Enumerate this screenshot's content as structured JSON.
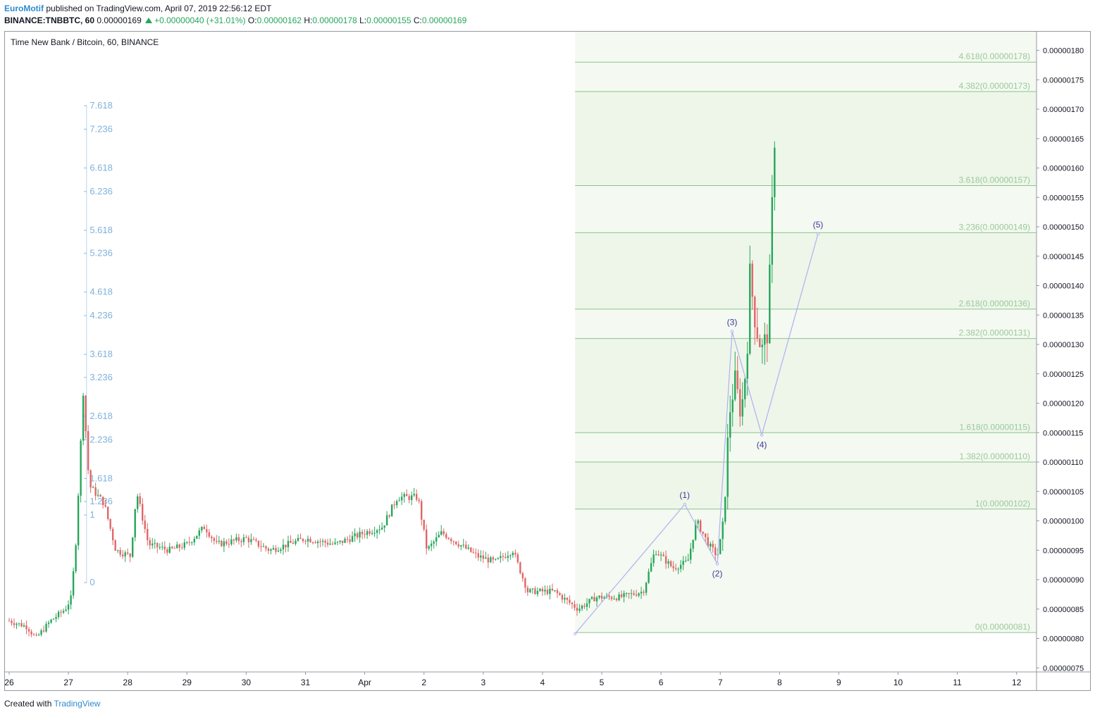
{
  "header": {
    "author": "EuroMotif",
    "published_text": "published on TradingView.com, April 07, 2019 22:56:12 EDT",
    "symbol_line": "BINANCE:TNBBTC, 60",
    "last_price": "0.00000169",
    "change": "+0.00000040 (+31.01%)",
    "open_label": "O:",
    "open": "0.00000162",
    "high_label": "H:",
    "high": "0.00000178",
    "low_label": "L:",
    "low": "0.00000155",
    "close_label": "C:",
    "close": "0.00000169"
  },
  "chart_title": "Time New Bank / Bitcoin, 60, BINANCE",
  "footer": {
    "created_with": "Created with",
    "brand": "TradingView"
  },
  "colors": {
    "up": "#26a65b",
    "down": "#e06666",
    "fib_line": "#8bc48b",
    "fib_label": "#9bc99b",
    "fib_fill": "#f4f9f1",
    "wave": "#b0b0f0",
    "wave_label": "#3a3a9a",
    "left_fib": "#7fb1dd",
    "axis_text": "#131722"
  },
  "chart_data": {
    "type": "candlestick",
    "y_axis": {
      "min": 7.3e-07,
      "max": 1.83e-06,
      "position": "right",
      "ticks": [
        "0.00000075",
        "0.00000080",
        "0.00000085",
        "0.00000090",
        "0.00000095",
        "0.00000100",
        "0.00000105",
        "0.00000110",
        "0.00000115",
        "0.00000120",
        "0.00000125",
        "0.00000130",
        "0.00000135",
        "0.00000140",
        "0.00000145",
        "0.00000150",
        "0.00000155",
        "0.00000160",
        "0.00000165",
        "0.00000170",
        "0.00000175",
        "0.00000180"
      ]
    },
    "x_axis": {
      "min": 0,
      "max": 18.4,
      "ticks": [
        {
          "t": 0,
          "label": "26"
        },
        {
          "t": 1,
          "label": "27"
        },
        {
          "t": 2,
          "label": "28"
        },
        {
          "t": 3,
          "label": "29"
        },
        {
          "t": 4,
          "label": "30"
        },
        {
          "t": 5,
          "label": "31"
        },
        {
          "t": 6,
          "label": "Apr"
        },
        {
          "t": 7,
          "label": "2"
        },
        {
          "t": 8,
          "label": "3"
        },
        {
          "t": 9,
          "label": "4"
        },
        {
          "t": 10,
          "label": "5"
        },
        {
          "t": 11,
          "label": "6"
        },
        {
          "t": 12,
          "label": "7"
        },
        {
          "t": 13,
          "label": "8"
        },
        {
          "t": 14,
          "label": "9"
        },
        {
          "t": 15,
          "label": "10"
        },
        {
          "t": 16,
          "label": "11"
        },
        {
          "t": 17,
          "label": "12"
        }
      ]
    },
    "fib_extension": {
      "t_start": 9.55,
      "t_end": 18.4,
      "levels": [
        {
          "ratio": "0",
          "label": "0(0.00000081)",
          "price": 8.1e-07
        },
        {
          "ratio": "1",
          "label": "1(0.00000102)",
          "price": 1.02e-06
        },
        {
          "ratio": "1.382",
          "label": "1.382(0.00000110)",
          "price": 1.1e-06
        },
        {
          "ratio": "1.618",
          "label": "1.618(0.00000115)",
          "price": 1.15e-06
        },
        {
          "ratio": "2.382",
          "label": "2.382(0.00000131)",
          "price": 1.31e-06
        },
        {
          "ratio": "2.618",
          "label": "2.618(0.00000136)",
          "price": 1.36e-06
        },
        {
          "ratio": "3.236",
          "label": "3.236(0.00000149)",
          "price": 1.49e-06
        },
        {
          "ratio": "3.618",
          "label": "3.618(0.00000157)",
          "price": 1.57e-06
        },
        {
          "ratio": "4.382",
          "label": "4.382(0.00000173)",
          "price": 1.73e-06
        },
        {
          "ratio": "4.618",
          "label": "4.618(0.00000178)",
          "price": 1.78e-06
        }
      ]
    },
    "left_fib": {
      "t": 1.3,
      "labels": [
        {
          "label": "0",
          "price": 8.95e-07
        },
        {
          "label": "1",
          "price": 1.01e-06
        },
        {
          "label": "1.236",
          "price": 1.033e-06
        },
        {
          "label": "1.618",
          "price": 1.072e-06
        },
        {
          "label": "2.236",
          "price": 1.138e-06
        },
        {
          "label": "2.618",
          "price": 1.178e-06
        },
        {
          "label": "3.236",
          "price": 1.244e-06
        },
        {
          "label": "3.618",
          "price": 1.283e-06
        },
        {
          "label": "4.236",
          "price": 1.349e-06
        },
        {
          "label": "4.618",
          "price": 1.389e-06
        },
        {
          "label": "5.236",
          "price": 1.455e-06
        },
        {
          "label": "5.618",
          "price": 1.494e-06
        },
        {
          "label": "6.236",
          "price": 1.56e-06
        },
        {
          "label": "6.618",
          "price": 1.6e-06
        },
        {
          "label": "7.236",
          "price": 1.666e-06
        },
        {
          "label": "7.618",
          "price": 1.706e-06
        }
      ]
    },
    "elliott_wave": [
      {
        "label": "",
        "t": 9.55,
        "price": 8.08e-07,
        "pos": "none"
      },
      {
        "label": "(1)",
        "t": 11.4,
        "price": 1.028e-06,
        "pos": "above"
      },
      {
        "label": "(2)",
        "t": 11.95,
        "price": 9.27e-07,
        "pos": "below"
      },
      {
        "label": "(3)",
        "t": 12.2,
        "price": 1.322e-06,
        "pos": "above"
      },
      {
        "label": "(4)",
        "t": 12.7,
        "price": 1.146e-06,
        "pos": "below"
      },
      {
        "label": "(5)",
        "t": 13.65,
        "price": 1.488e-06,
        "pos": "above"
      }
    ],
    "candles_anchor": [
      [
        0.0,
        8.3e-07
      ],
      [
        0.3,
        8.2e-07
      ],
      [
        0.45,
        8e-07
      ],
      [
        0.7,
        8.3e-07
      ],
      [
        0.95,
        8.5e-07
      ],
      [
        1.05,
        8.7e-07
      ],
      [
        1.13,
        9.7e-07
      ],
      [
        1.25,
        1.22e-06
      ],
      [
        1.35,
        1.06e-06
      ],
      [
        1.6,
        1.03e-06
      ],
      [
        1.8,
        9.5e-07
      ],
      [
        2.05,
        9.4e-07
      ],
      [
        2.15,
        1.05e-06
      ],
      [
        2.35,
        9.6e-07
      ],
      [
        2.7,
        9.5e-07
      ],
      [
        3.0,
        9.6e-07
      ],
      [
        3.3,
        9.9e-07
      ],
      [
        3.5,
        9.6e-07
      ],
      [
        4.0,
        9.7e-07
      ],
      [
        4.4,
        9.5e-07
      ],
      [
        5.0,
        9.7e-07
      ],
      [
        5.5,
        9.6e-07
      ],
      [
        6.0,
        9.8e-07
      ],
      [
        6.3,
        9.9e-07
      ],
      [
        6.55,
        1.04e-06
      ],
      [
        6.9,
        1.04e-06
      ],
      [
        7.05,
        9.5e-07
      ],
      [
        7.3,
        9.8e-07
      ],
      [
        7.6,
        9.6e-07
      ],
      [
        7.9,
        9.4e-07
      ],
      [
        8.2,
        9.3e-07
      ],
      [
        8.5,
        9.5e-07
      ],
      [
        8.75,
        8.8e-07
      ],
      [
        9.2,
        8.8e-07
      ],
      [
        9.6,
        8.5e-07
      ],
      [
        9.9,
        8.7e-07
      ],
      [
        10.3,
        8.7e-07
      ],
      [
        10.7,
        8.8e-07
      ],
      [
        10.9,
        9.5e-07
      ],
      [
        11.2,
        9.2e-07
      ],
      [
        11.45,
        9.3e-07
      ],
      [
        11.6,
        1e-06
      ],
      [
        11.8,
        9.6e-07
      ],
      [
        11.95,
        9.4e-07
      ],
      [
        12.05,
        9.9e-07
      ],
      [
        12.15,
        1.18e-06
      ],
      [
        12.25,
        1.24e-06
      ],
      [
        12.35,
        1.18e-06
      ],
      [
        12.45,
        1.28e-06
      ],
      [
        12.5,
        1.42e-06
      ],
      [
        12.6,
        1.33e-06
      ],
      [
        12.7,
        1.29e-06
      ],
      [
        12.8,
        1.32e-06
      ],
      [
        12.87,
        1.52e-06
      ],
      [
        12.93,
        1.69e-06
      ]
    ]
  }
}
